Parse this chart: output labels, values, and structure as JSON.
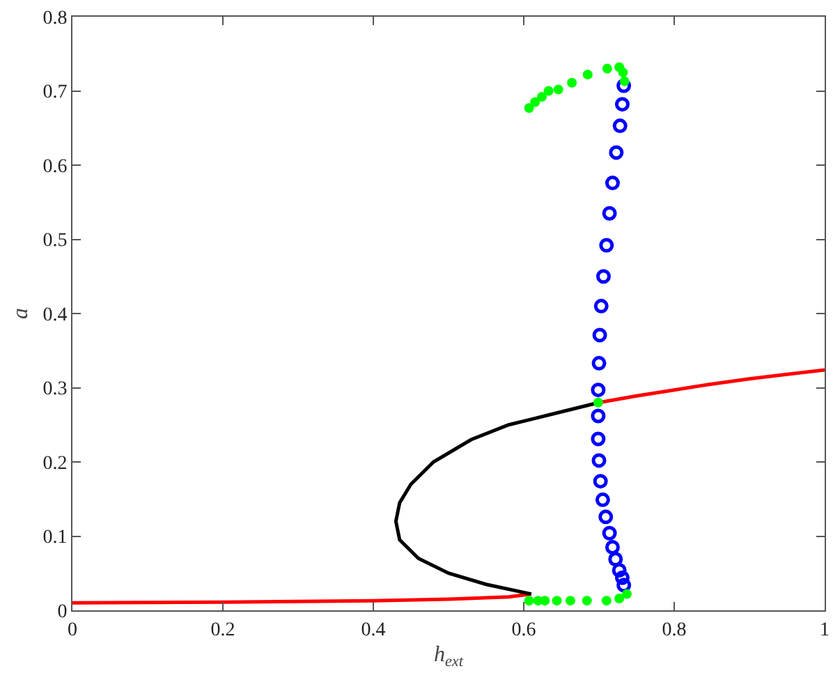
{
  "chart_data": {
    "type": "line",
    "xlabel": "h$_{ext}$",
    "ylabel": "a",
    "xlim": [
      0,
      1
    ],
    "ylim": [
      0,
      0.8
    ],
    "xticks": [
      0,
      0.2,
      0.4,
      0.6,
      0.8,
      1
    ],
    "yticks": [
      0,
      0.1,
      0.2,
      0.3,
      0.4,
      0.5,
      0.6,
      0.7,
      0.8
    ],
    "grid": false,
    "series": [
      {
        "color": "#ff0000",
        "marker": "none",
        "x": [
          0,
          0.2,
          0.4,
          0.5,
          0.58,
          0.61
        ],
        "values": [
          0.01,
          0.011,
          0.013,
          0.015,
          0.018,
          0.022
        ]
      },
      {
        "color": "#000000",
        "marker": "none",
        "x": [
          0.61,
          0.55,
          0.5,
          0.46,
          0.435,
          0.43,
          0.435,
          0.45,
          0.48,
          0.53,
          0.58,
          0.64,
          0.7
        ],
        "values": [
          0.022,
          0.035,
          0.05,
          0.07,
          0.095,
          0.12,
          0.145,
          0.17,
          0.2,
          0.23,
          0.25,
          0.265,
          0.28
        ]
      },
      {
        "color": "#ff0000",
        "marker": "none",
        "x": [
          0.7,
          0.75,
          0.8,
          0.85,
          0.9,
          0.95,
          1
        ],
        "values": [
          0.28,
          0.289,
          0.297,
          0.305,
          0.312,
          0.318,
          0.324
        ]
      },
      {
        "type": "scatter",
        "color": "#0000ff",
        "marker": "circle",
        "x": [
          0.733,
          0.731,
          0.728,
          0.723,
          0.718,
          0.714,
          0.71,
          0.706,
          0.703,
          0.701,
          0.7,
          0.699,
          0.699,
          0.699,
          0.7,
          0.702,
          0.705,
          0.709,
          0.714,
          0.718,
          0.722,
          0.727,
          0.731,
          0.733
        ],
        "values": [
          0.707,
          0.682,
          0.653,
          0.617,
          0.576,
          0.535,
          0.492,
          0.45,
          0.41,
          0.371,
          0.333,
          0.297,
          0.262,
          0.231,
          0.202,
          0.174,
          0.149,
          0.126,
          0.104,
          0.085,
          0.069,
          0.054,
          0.044,
          0.034
        ]
      },
      {
        "type": "scatter",
        "color": "#00ff00",
        "marker": "circle",
        "x": [
          0.607,
          0.615,
          0.624,
          0.633,
          0.646,
          0.664,
          0.685,
          0.711,
          0.727,
          0.732,
          0.734,
          0.699,
          0.607,
          0.619,
          0.628,
          0.644,
          0.662,
          0.684,
          0.71,
          0.727,
          0.737
        ],
        "values": [
          0.677,
          0.685,
          0.692,
          0.7,
          0.702,
          0.711,
          0.722,
          0.73,
          0.732,
          0.725,
          0.713,
          0.28,
          0.013,
          0.013,
          0.013,
          0.013,
          0.013,
          0.013,
          0.013,
          0.016,
          0.022
        ]
      }
    ]
  }
}
